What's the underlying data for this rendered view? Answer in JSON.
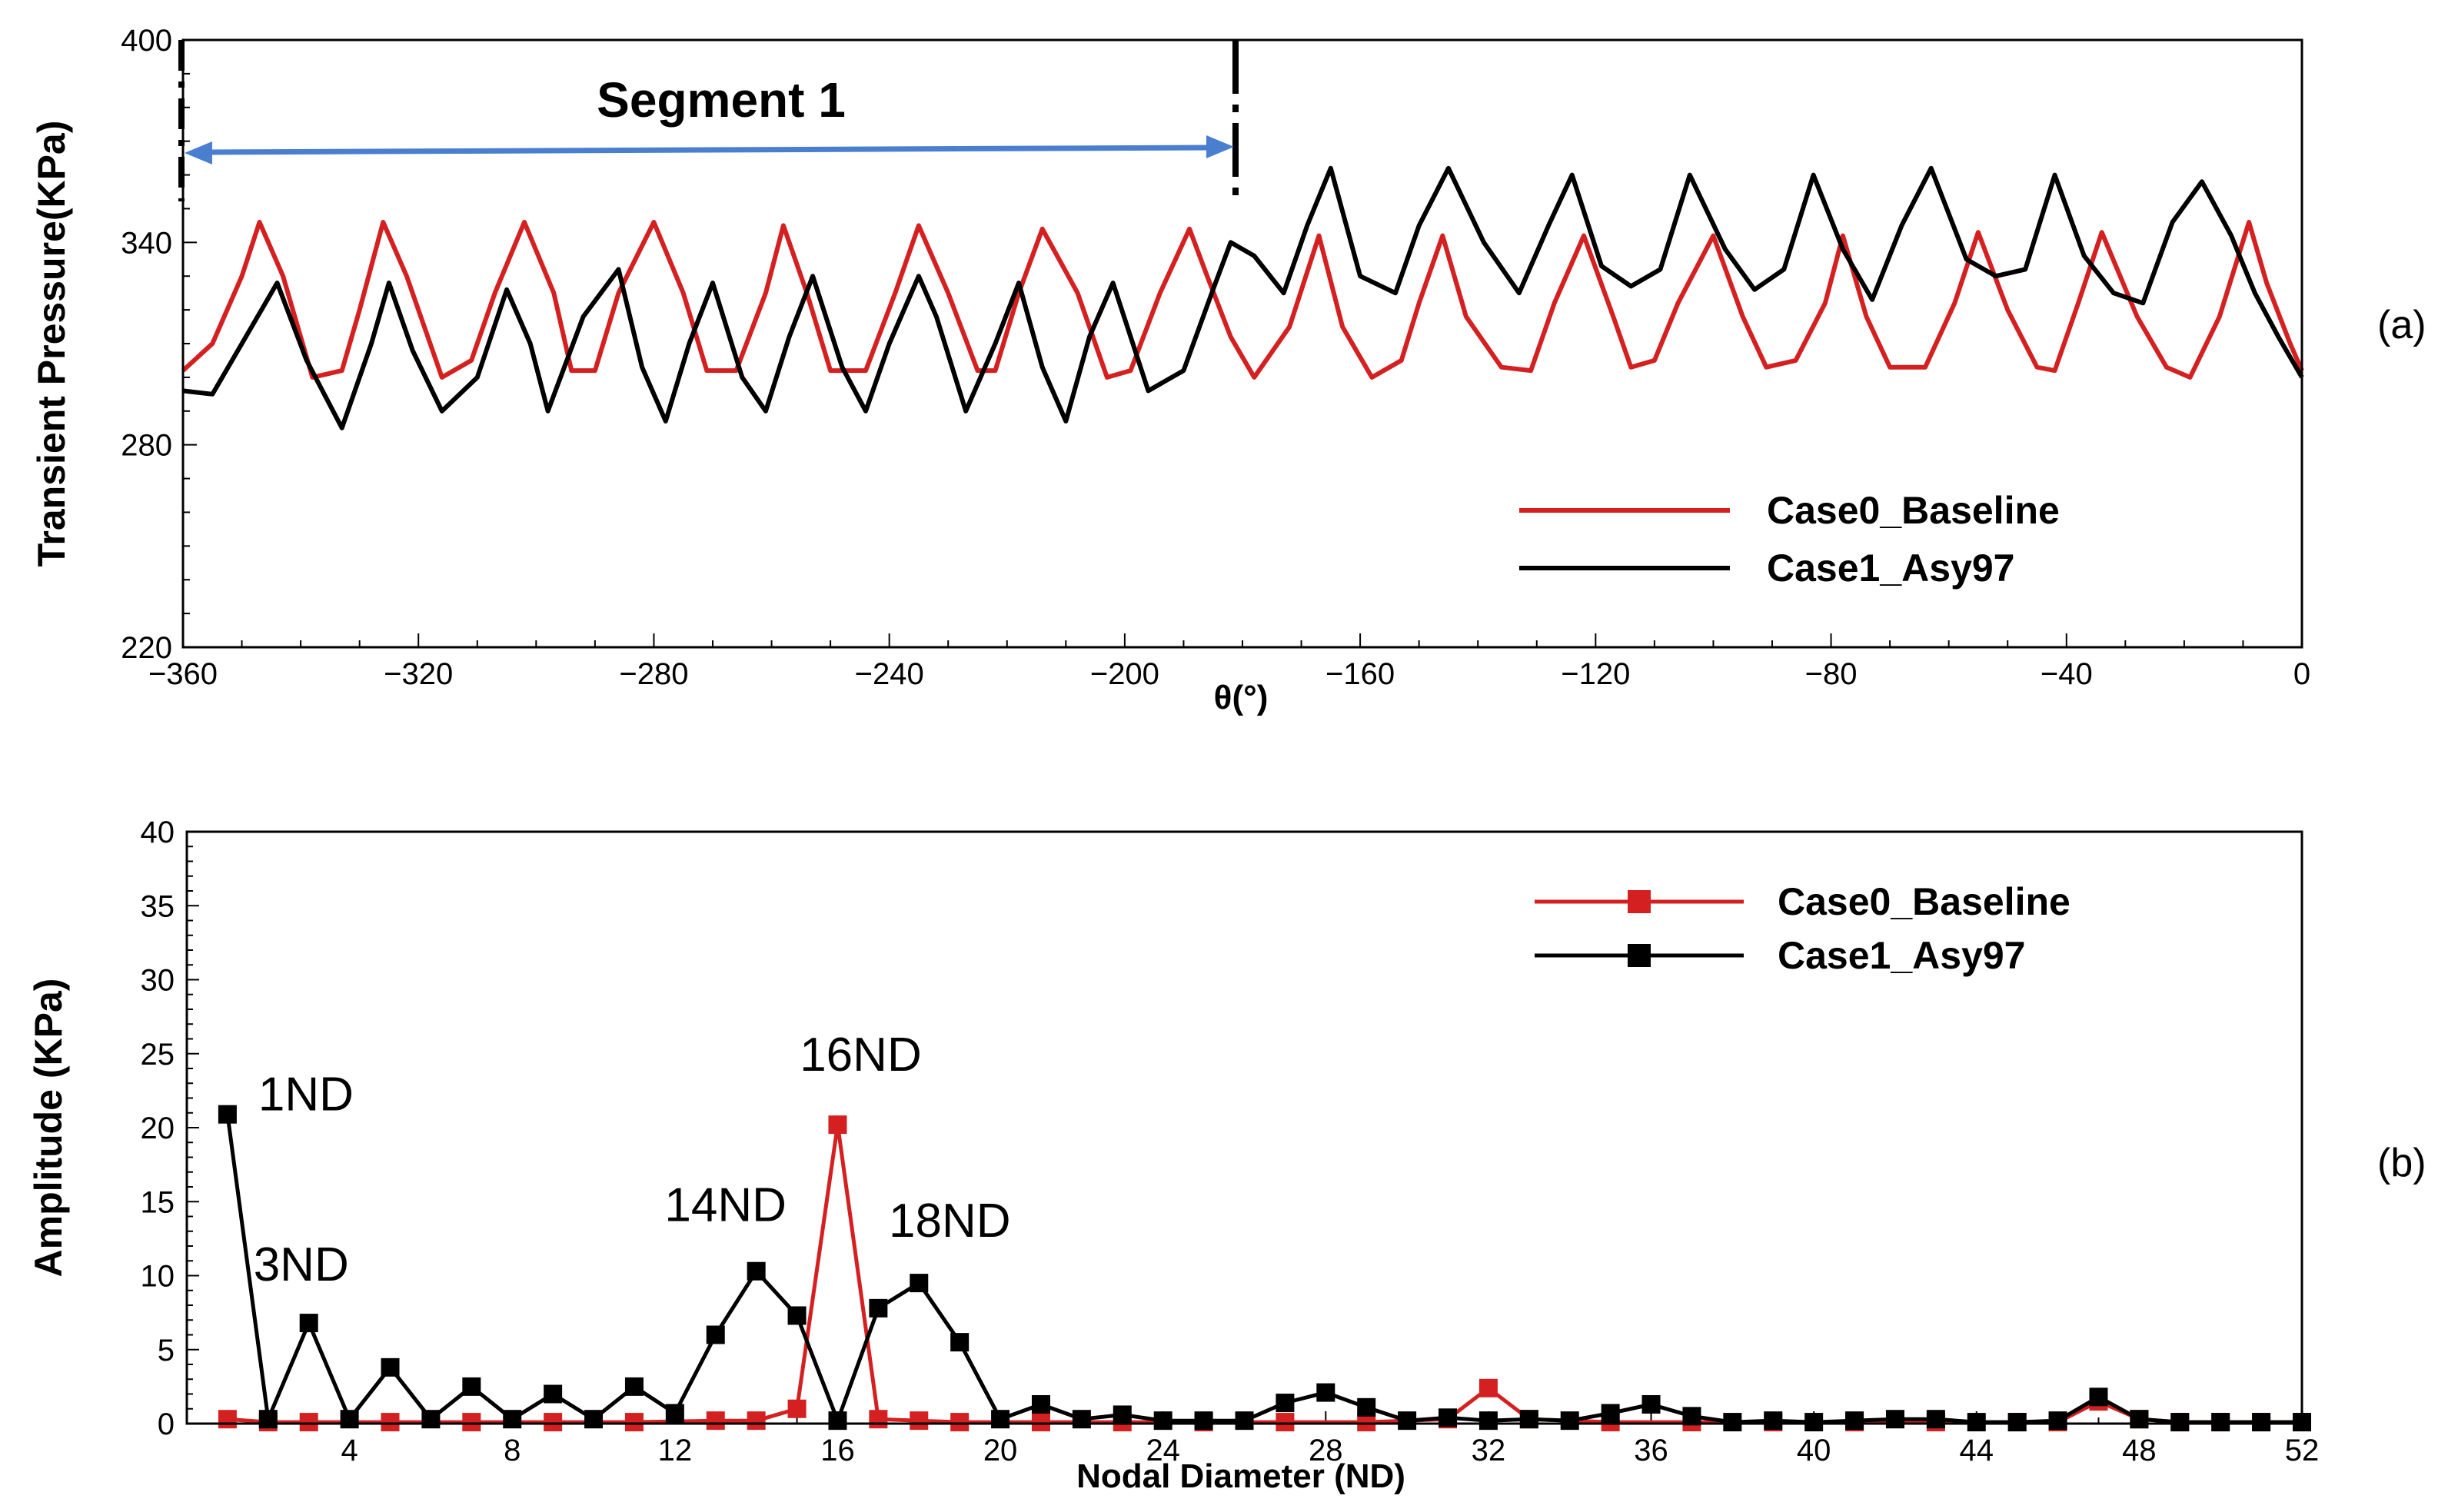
{
  "chart_data": [
    {
      "panel": "(a)",
      "type": "line",
      "title": "",
      "xlabel": "θ(°)",
      "ylabel": "Transient Pressure(KPa)",
      "xlim": [
        -360,
        0
      ],
      "ylim": [
        220,
        400
      ],
      "xticks": [
        -360,
        -320,
        -280,
        -240,
        -200,
        -160,
        -120,
        -80,
        -40,
        0
      ],
      "yticks": [
        220,
        280,
        340,
        400
      ],
      "segment_label": "Segment 1",
      "segment_range": [
        -360,
        -180
      ],
      "series": [
        {
          "name": "Case0_Baseline",
          "color": "#d42020",
          "x": [
            -360,
            -355,
            -350,
            -347,
            -343,
            -338,
            -333,
            -330,
            -326,
            -322,
            -316,
            -311,
            -307,
            -302,
            -297,
            -294,
            -290,
            -286,
            -280,
            -275,
            -271,
            -266,
            -261,
            -258,
            -254,
            -250,
            -244,
            -239,
            -235,
            -230,
            -225,
            -222,
            -218,
            -214,
            -208,
            -203,
            -199,
            -194,
            -189,
            -186,
            -182,
            -178,
            -172,
            -167,
            -163,
            -158,
            -153,
            -150,
            -146,
            -142,
            -136,
            -131,
            -127,
            -122,
            -117,
            -114,
            -110,
            -106,
            -100,
            -95,
            -91,
            -86,
            -81,
            -78,
            -74,
            -70,
            -64,
            -59,
            -55,
            -50,
            -45,
            -42,
            -38,
            -34,
            -28,
            -23,
            -19,
            -14,
            -9,
            -6,
            -2,
            0
          ],
          "y": [
            302,
            310,
            330,
            346,
            330,
            300,
            302,
            320,
            346,
            330,
            300,
            305,
            325,
            346,
            325,
            302,
            302,
            325,
            346,
            325,
            302,
            302,
            325,
            345,
            325,
            302,
            302,
            325,
            345,
            325,
            302,
            302,
            325,
            344,
            325,
            300,
            302,
            325,
            344,
            330,
            312,
            300,
            315,
            342,
            315,
            300,
            305,
            322,
            342,
            318,
            303,
            302,
            322,
            342,
            318,
            303,
            305,
            322,
            342,
            318,
            303,
            305,
            322,
            342,
            318,
            303,
            303,
            322,
            343,
            320,
            303,
            302,
            322,
            343,
            318,
            303,
            300,
            318,
            346,
            328,
            310,
            302
          ]
        },
        {
          "name": "Case1_Asy97",
          "color": "#000000",
          "x": [
            -360,
            -355,
            -350,
            -344,
            -339,
            -333,
            -328,
            -325,
            -321,
            -316,
            -310,
            -305,
            -301,
            -298,
            -292,
            -286,
            -282,
            -278,
            -274,
            -270,
            -265,
            -261,
            -257,
            -253,
            -248,
            -244,
            -240,
            -235,
            -232,
            -227,
            -222,
            -218,
            -214,
            -210,
            -206,
            -202,
            -196,
            -190,
            -185,
            -182,
            -178,
            -173,
            -169,
            -165,
            -160,
            -154,
            -150,
            -145,
            -139,
            -133,
            -128,
            -124,
            -119,
            -114,
            -109,
            -104,
            -98,
            -93,
            -88,
            -83,
            -78,
            -73,
            -68,
            -63,
            -57,
            -52,
            -47,
            -42,
            -37,
            -32,
            -27,
            -22,
            -17,
            -12,
            -8,
            -4,
            0
          ],
          "y": [
            296,
            295,
            310,
            328,
            305,
            285,
            310,
            328,
            308,
            290,
            300,
            326,
            310,
            290,
            318,
            332,
            303,
            287,
            310,
            328,
            300,
            290,
            312,
            330,
            303,
            290,
            310,
            330,
            318,
            290,
            310,
            328,
            303,
            287,
            312,
            328,
            296,
            302,
            326,
            340,
            336,
            325,
            345,
            362,
            330,
            325,
            345,
            362,
            340,
            325,
            345,
            360,
            333,
            327,
            332,
            360,
            338,
            326,
            332,
            360,
            338,
            323,
            345,
            362,
            335,
            330,
            332,
            360,
            336,
            325,
            322,
            346,
            358,
            342,
            325,
            312,
            300
          ]
        }
      ]
    },
    {
      "panel": "(b)",
      "type": "line",
      "title": "",
      "xlabel": "Nodal Diameter (ND)",
      "ylabel": "Amplitude (KPa)",
      "xlim": [
        0,
        52
      ],
      "ylim": [
        0,
        40
      ],
      "xticks": [
        4,
        8,
        12,
        16,
        20,
        24,
        28,
        32,
        36,
        40,
        44,
        48,
        52
      ],
      "yticks": [
        0,
        5,
        10,
        15,
        20,
        25,
        30,
        35,
        40
      ],
      "annotations": [
        {
          "text": "1ND",
          "nd": 1,
          "color": "#000000"
        },
        {
          "text": "3ND",
          "nd": 3,
          "color": "#000000"
        },
        {
          "text": "14ND",
          "nd": 14,
          "color": "#000000"
        },
        {
          "text": "16ND",
          "nd": 16,
          "color": "#d42020"
        },
        {
          "text": "18ND",
          "nd": 18,
          "color": "#000000"
        }
      ],
      "series": [
        {
          "name": "Case0_Baseline",
          "color": "#d42020",
          "x": [
            1,
            2,
            3,
            5,
            7,
            9,
            11,
            13,
            14,
            15,
            16,
            17,
            18,
            19,
            21,
            23,
            25,
            27,
            29,
            31,
            32,
            33,
            35,
            37,
            39,
            41,
            43,
            45,
            46,
            47,
            48,
            49,
            50,
            51,
            52
          ],
          "y": [
            0.3,
            0.1,
            0.1,
            0.1,
            0.1,
            0.1,
            0.1,
            0.2,
            0.2,
            1.0,
            20.2,
            0.3,
            0.2,
            0.1,
            0.1,
            0.1,
            0.1,
            0.1,
            0.1,
            0.3,
            2.4,
            0.3,
            0.1,
            0.1,
            0.1,
            0.1,
            0.1,
            0.1,
            0.1,
            1.5,
            0.3,
            0.1,
            0.1,
            0.1,
            0.1
          ]
        },
        {
          "name": "Case1_Asy97",
          "color": "#000000",
          "x": [
            1,
            2,
            3,
            4,
            5,
            6,
            7,
            8,
            9,
            10,
            11,
            12,
            13,
            14,
            15,
            16,
            17,
            18,
            19,
            20,
            21,
            22,
            23,
            24,
            25,
            26,
            27,
            28,
            29,
            30,
            31,
            32,
            33,
            34,
            35,
            36,
            37,
            38,
            39,
            40,
            41,
            42,
            43,
            44,
            45,
            46,
            47,
            48,
            49,
            50,
            51,
            52
          ],
          "y": [
            20.9,
            0.3,
            6.8,
            0.3,
            3.8,
            0.3,
            2.5,
            0.3,
            2.0,
            0.3,
            2.5,
            0.7,
            6.0,
            10.3,
            7.3,
            0.2,
            7.8,
            9.5,
            5.5,
            0.3,
            1.3,
            0.3,
            0.6,
            0.2,
            0.2,
            0.2,
            1.4,
            2.1,
            1.1,
            0.2,
            0.4,
            0.2,
            0.3,
            0.2,
            0.7,
            1.3,
            0.5,
            0.1,
            0.2,
            0.1,
            0.2,
            0.3,
            0.3,
            0.1,
            0.1,
            0.2,
            1.8,
            0.3,
            0.1,
            0.1,
            0.1,
            0.1
          ]
        }
      ]
    }
  ]
}
